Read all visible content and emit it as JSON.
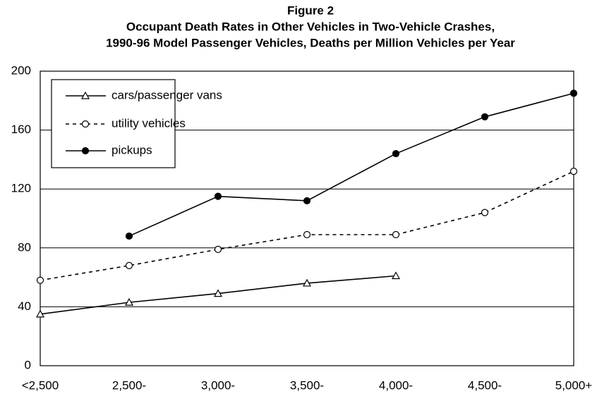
{
  "chart_data": {
    "type": "line",
    "title": "Figure 2",
    "subtitle": [
      "Occupant Death Rates in Other Vehicles in Two-Vehicle Crashes,",
      "1990-96 Model Passenger Vehicles, Deaths per Million Vehicles per Year"
    ],
    "categories": [
      "<2,500",
      "2,500-",
      "3,000-",
      "3,500-",
      "4,000-",
      "4,500-",
      "5,000+"
    ],
    "series": [
      {
        "name": "cars/passenger vans",
        "color": "#000000",
        "marker": "triangle",
        "dashed": false,
        "values": [
          35,
          43,
          49,
          56,
          61,
          null,
          null
        ]
      },
      {
        "name": "utility vehicles",
        "color": "#000000",
        "marker": "open-circle",
        "dashed": true,
        "values": [
          58,
          68,
          79,
          89,
          89,
          104,
          132
        ]
      },
      {
        "name": "pickups",
        "color": "#000000",
        "marker": "filled-circle",
        "dashed": false,
        "values": [
          null,
          88,
          115,
          112,
          144,
          169,
          185
        ]
      }
    ],
    "ylim": [
      0,
      200
    ],
    "yticks": [
      0,
      40,
      80,
      120,
      160,
      200
    ],
    "grid": true,
    "legend": "top-left"
  }
}
